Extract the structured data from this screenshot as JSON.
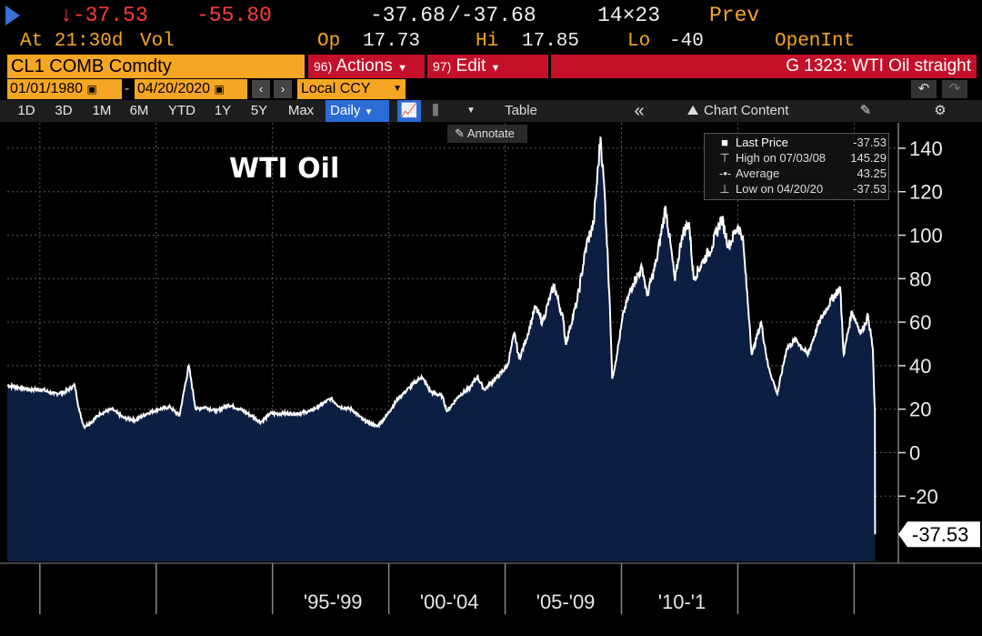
{
  "header": {
    "last_change": "↓-37.53",
    "net_change": "-55.80",
    "bid_ask_bid": "-37.68",
    "bid_ask_ask": "/-37.68",
    "size": "14×23",
    "prev_label": "Prev",
    "at_time": "At 21:30d",
    "vol_label": "Vol",
    "open_label": "Op",
    "open_value": "17.73",
    "high_label": "Hi",
    "high_value": "17.85",
    "low_label": "Lo",
    "low_value": "-40",
    "open_int_label": "OpenInt"
  },
  "ticker": {
    "security": "CL1 COMB Comdty",
    "actions_num": "96)",
    "actions_label": "Actions",
    "edit_num": "97)",
    "edit_label": "Edit",
    "chart_id": "G 1323: WTI Oil straight"
  },
  "date_range": {
    "start": "01/01/1980",
    "end": "04/20/2020",
    "currency": "Local CCY",
    "prev_arrow": "‹",
    "next_arrow": "›"
  },
  "toolbar": {
    "periods": [
      "1D",
      "3D",
      "1M",
      "6M",
      "YTD",
      "1Y",
      "5Y",
      "Max"
    ],
    "frequency": "Daily",
    "table_label": "Table",
    "chart_content_label": "Chart Content",
    "annotate_label": "Annotate"
  },
  "legend": {
    "last_price_label": "Last Price",
    "last_price_value": "-37.53",
    "high_label": "High on 07/03/08",
    "high_value": "145.29",
    "average_label": "Average",
    "average_value": "43.25",
    "low_label": "Low on 04/20/20",
    "low_value": "-37.53"
  },
  "colors": {
    "accent_amber": "#f5a623",
    "action_red": "#c5102a",
    "area_fill": "#0c1f42",
    "line": "#ffffff",
    "active_blue": "#2b6bd6"
  },
  "chart_data": {
    "type": "area",
    "title": "WTI Oil",
    "series": [
      {
        "name": "Last Price",
        "points": [
          [
            1983.0,
            31
          ],
          [
            1983.5,
            30
          ],
          [
            1984.0,
            29
          ],
          [
            1984.5,
            29
          ],
          [
            1985.0,
            27
          ],
          [
            1985.5,
            28
          ],
          [
            1985.9,
            31
          ],
          [
            1986.1,
            19
          ],
          [
            1986.3,
            12
          ],
          [
            1986.6,
            14
          ],
          [
            1987.0,
            18
          ],
          [
            1987.5,
            20
          ],
          [
            1988.0,
            16
          ],
          [
            1988.5,
            15
          ],
          [
            1989.0,
            18
          ],
          [
            1989.5,
            20
          ],
          [
            1990.0,
            21
          ],
          [
            1990.4,
            17
          ],
          [
            1990.8,
            40
          ],
          [
            1991.1,
            20
          ],
          [
            1991.5,
            21
          ],
          [
            1992.0,
            19
          ],
          [
            1992.5,
            22
          ],
          [
            1993.0,
            20
          ],
          [
            1993.5,
            17
          ],
          [
            1993.9,
            14
          ],
          [
            1994.3,
            18
          ],
          [
            1994.8,
            18
          ],
          [
            1995.5,
            18
          ],
          [
            1996.0,
            19
          ],
          [
            1996.5,
            22
          ],
          [
            1996.9,
            25
          ],
          [
            1997.3,
            21
          ],
          [
            1997.8,
            20
          ],
          [
            1998.3,
            15
          ],
          [
            1998.9,
            12
          ],
          [
            1999.3,
            17
          ],
          [
            1999.8,
            25
          ],
          [
            2000.3,
            30
          ],
          [
            2000.8,
            35
          ],
          [
            2001.2,
            28
          ],
          [
            2001.7,
            26
          ],
          [
            2001.9,
            19
          ],
          [
            2002.4,
            26
          ],
          [
            2002.9,
            30
          ],
          [
            2003.2,
            35
          ],
          [
            2003.5,
            29
          ],
          [
            2004.0,
            34
          ],
          [
            2004.5,
            40
          ],
          [
            2004.8,
            55
          ],
          [
            2005.0,
            43
          ],
          [
            2005.3,
            52
          ],
          [
            2005.7,
            67
          ],
          [
            2006.0,
            60
          ],
          [
            2006.5,
            77
          ],
          [
            2006.9,
            61
          ],
          [
            2007.0,
            50
          ],
          [
            2007.5,
            70
          ],
          [
            2007.9,
            96
          ],
          [
            2008.2,
            105
          ],
          [
            2008.5,
            145.29
          ],
          [
            2008.7,
            115
          ],
          [
            2008.9,
            68
          ],
          [
            2009.0,
            34
          ],
          [
            2009.2,
            45
          ],
          [
            2009.5,
            65
          ],
          [
            2009.9,
            78
          ],
          [
            2010.3,
            85
          ],
          [
            2010.5,
            72
          ],
          [
            2010.9,
            88
          ],
          [
            2011.3,
            113
          ],
          [
            2011.7,
            79
          ],
          [
            2012.0,
            100
          ],
          [
            2012.3,
            106
          ],
          [
            2012.5,
            80
          ],
          [
            2012.9,
            88
          ],
          [
            2013.3,
            95
          ],
          [
            2013.7,
            108
          ],
          [
            2014.0,
            95
          ],
          [
            2014.4,
            104
          ],
          [
            2014.6,
            100
          ],
          [
            2014.9,
            60
          ],
          [
            2015.0,
            45
          ],
          [
            2015.4,
            60
          ],
          [
            2015.7,
            40
          ],
          [
            2016.1,
            27
          ],
          [
            2016.5,
            48
          ],
          [
            2016.9,
            52
          ],
          [
            2017.4,
            45
          ],
          [
            2017.9,
            60
          ],
          [
            2018.4,
            70
          ],
          [
            2018.8,
            76
          ],
          [
            2018.95,
            45
          ],
          [
            2019.3,
            65
          ],
          [
            2019.7,
            55
          ],
          [
            2020.0,
            63
          ],
          [
            2020.2,
            48
          ],
          [
            2020.27,
            25
          ],
          [
            2020.29,
            18
          ],
          [
            2020.3,
            -37.53
          ]
        ]
      }
    ],
    "xlim": [
      1983.0,
      2021.3
    ],
    "ylim": [
      -50,
      150
    ],
    "y_ticks": [
      -20,
      0,
      20,
      40,
      60,
      80,
      100,
      120,
      140
    ],
    "x_tick_labels": [
      "'95-'99",
      "'00-'04",
      "'05-'09",
      "'10-'1"
    ],
    "x_tick_positions": [
      1997.0,
      2002.0,
      2007.0,
      2012.0
    ],
    "x_dividers": [
      1984.4,
      1989.4,
      1994.4,
      1999.4,
      2004.4,
      2009.4,
      2014.4,
      2019.4
    ],
    "last_value_label": "-37.53",
    "grid": true,
    "legend_position": "top-right"
  }
}
